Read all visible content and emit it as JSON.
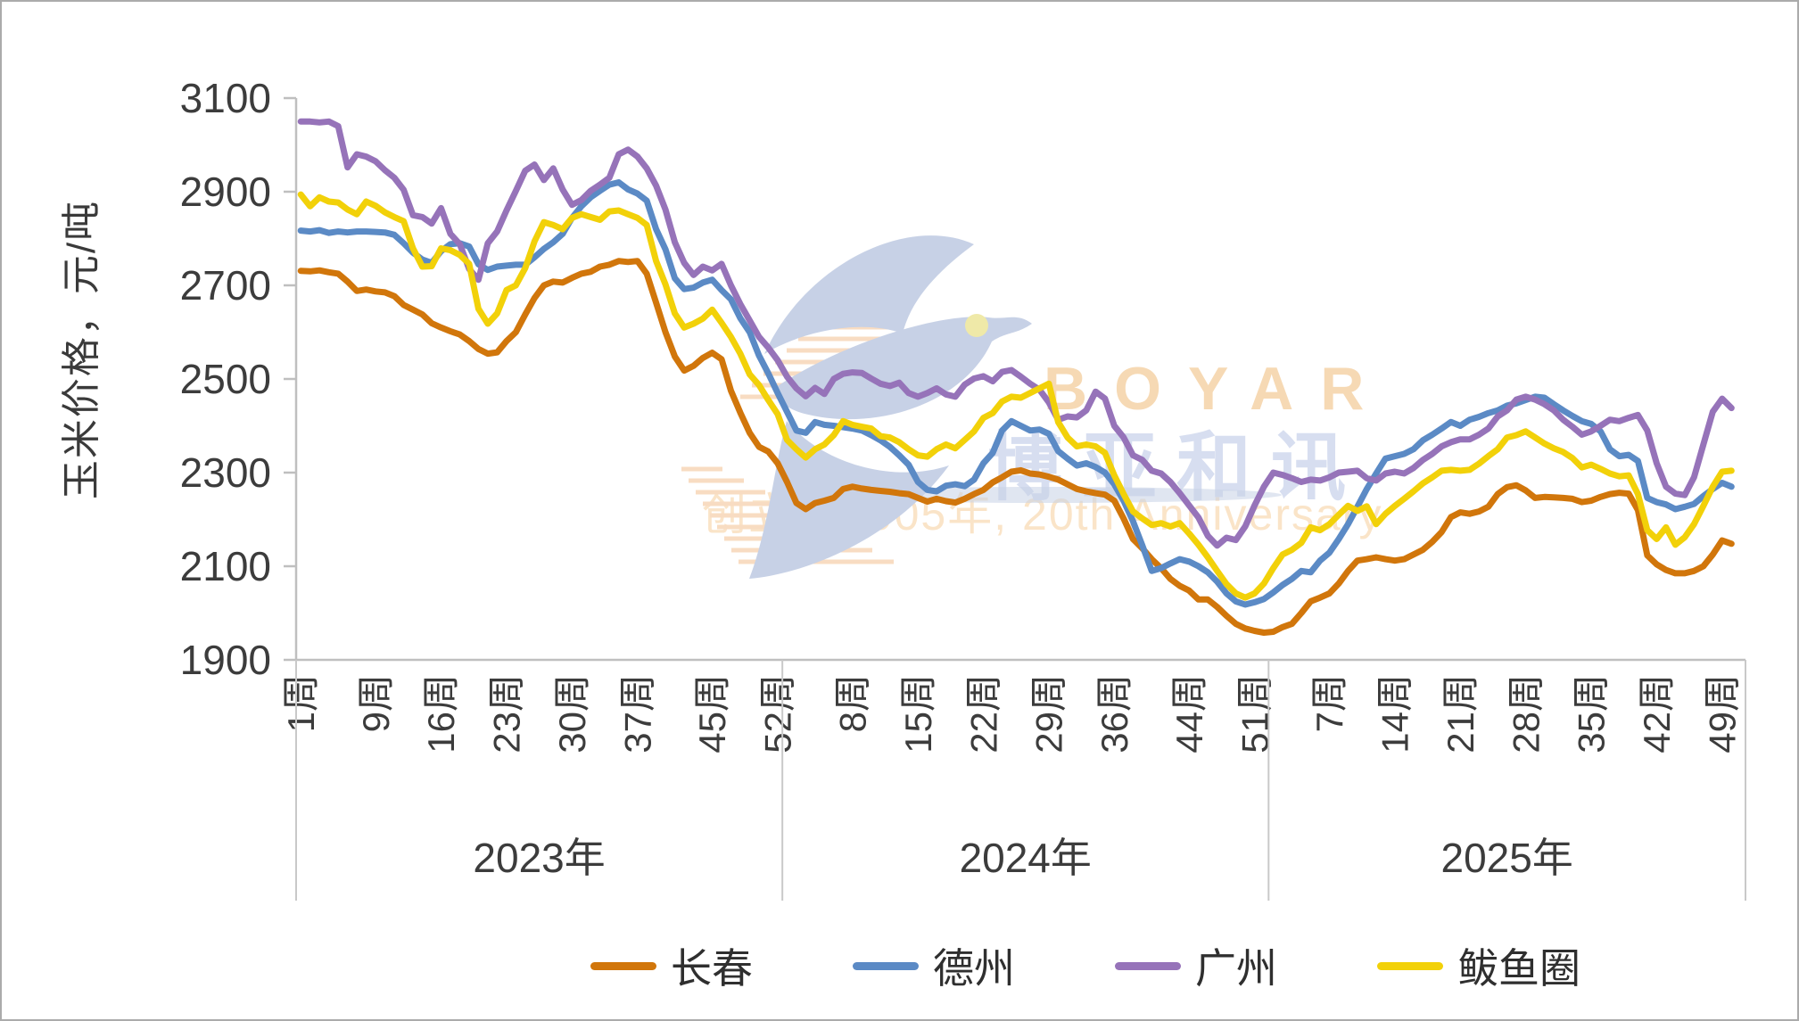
{
  "watermark": {
    "brand": "BOYAR",
    "brand_cn": "博亚和讯",
    "slogan": "创立于2005年, 20th Anniversary",
    "brand_color": "#f6d9b4",
    "brand_cn_color": "#d7def0",
    "slogan_color": "#fae4c8",
    "bird_color": "#c7d1e6",
    "stripe_color": "#f8dcc2"
  },
  "axis_colors": {
    "line": "#bfbfbf",
    "separator": "#c9c9c9",
    "text": "#3c3c3c"
  },
  "chart_data": {
    "type": "line",
    "title": "",
    "ylabel": "玉米价格，元/吨",
    "ylim": [
      1900,
      3100
    ],
    "y_ticks": [
      1900,
      2100,
      2300,
      2500,
      2700,
      2900,
      3100
    ],
    "x_tick_suffix": "周",
    "grid": "off",
    "legend_position": "bottom",
    "years": [
      {
        "label": "2023年",
        "year": 2023,
        "slots": 52,
        "tick_weeks": [
          1,
          9,
          16,
          23,
          30,
          37,
          45,
          52
        ]
      },
      {
        "label": "2024年",
        "year": 2024,
        "slots": 52,
        "tick_weeks": [
          8,
          15,
          22,
          29,
          36,
          44,
          51
        ]
      },
      {
        "label": "2025年",
        "year": 2025,
        "slots": 51,
        "tick_weeks": [
          7,
          14,
          21,
          28,
          35,
          42,
          49
        ]
      }
    ],
    "series": [
      {
        "name": "长春",
        "color": "#d1760b",
        "values_2023": [
          2731,
          2730,
          2732,
          2728,
          2725,
          2708,
          2688,
          2691,
          2687,
          2685,
          2677,
          2658,
          2648,
          2638,
          2619,
          2610,
          2602,
          2595,
          2581,
          2564,
          2554,
          2557,
          2581,
          2600,
          2638,
          2673,
          2700,
          2708,
          2706,
          2716,
          2725,
          2729,
          2740,
          2744,
          2752,
          2750,
          2752,
          2725,
          2663,
          2600,
          2548,
          2518,
          2528,
          2545,
          2556,
          2542,
          2475,
          2428,
          2385,
          2355,
          2345,
          2320
        ],
        "values_2024": [
          2280,
          2235,
          2222,
          2235,
          2240,
          2246,
          2265,
          2270,
          2266,
          2263,
          2261,
          2259,
          2256,
          2254,
          2246,
          2238,
          2244,
          2239,
          2236,
          2244,
          2254,
          2263,
          2279,
          2290,
          2302,
          2305,
          2298,
          2296,
          2291,
          2285,
          2275,
          2265,
          2260,
          2256,
          2253,
          2240,
          2202,
          2158,
          2138,
          2115,
          2096,
          2073,
          2058,
          2048,
          2029,
          2029,
          2013,
          1994,
          1977,
          1967,
          1962,
          1958
        ],
        "values_2025": [
          1960,
          1970,
          1977,
          2000,
          2025,
          2033,
          2042,
          2063,
          2090,
          2112,
          2115,
          2119,
          2115,
          2112,
          2115,
          2125,
          2135,
          2152,
          2173,
          2205,
          2215,
          2212,
          2217,
          2227,
          2254,
          2269,
          2273,
          2262,
          2246,
          2248,
          2247,
          2246,
          2244,
          2237,
          2240,
          2248,
          2254,
          2257,
          2255,
          2220,
          2123,
          2104,
          2092,
          2085,
          2085,
          2090,
          2100,
          2125,
          2155,
          2148
        ]
      },
      {
        "name": "德州",
        "color": "#5b8ac5",
        "values_2023": [
          2817,
          2815,
          2818,
          2812,
          2815,
          2813,
          2815,
          2815,
          2814,
          2813,
          2808,
          2790,
          2770,
          2755,
          2748,
          2773,
          2788,
          2790,
          2783,
          2745,
          2733,
          2740,
          2742,
          2744,
          2744,
          2760,
          2778,
          2792,
          2810,
          2844,
          2869,
          2888,
          2902,
          2915,
          2920,
          2905,
          2896,
          2881,
          2820,
          2777,
          2715,
          2692,
          2695,
          2706,
          2712,
          2690,
          2670,
          2630,
          2600,
          2550,
          2512,
          2470
        ],
        "values_2024": [
          2430,
          2390,
          2385,
          2408,
          2402,
          2400,
          2397,
          2394,
          2390,
          2380,
          2369,
          2355,
          2337,
          2317,
          2280,
          2263,
          2260,
          2272,
          2275,
          2271,
          2285,
          2320,
          2342,
          2390,
          2410,
          2400,
          2390,
          2392,
          2383,
          2346,
          2330,
          2315,
          2320,
          2312,
          2300,
          2275,
          2240,
          2196,
          2144,
          2090,
          2096,
          2106,
          2115,
          2110,
          2100,
          2087,
          2067,
          2042,
          2025,
          2018,
          2023,
          2030
        ],
        "values_2025": [
          2044,
          2060,
          2073,
          2090,
          2087,
          2112,
          2129,
          2158,
          2190,
          2227,
          2265,
          2298,
          2330,
          2335,
          2340,
          2350,
          2369,
          2381,
          2394,
          2408,
          2400,
          2413,
          2419,
          2427,
          2433,
          2443,
          2448,
          2455,
          2462,
          2460,
          2446,
          2433,
          2421,
          2410,
          2404,
          2388,
          2350,
          2335,
          2338,
          2325,
          2246,
          2237,
          2232,
          2222,
          2227,
          2233,
          2250,
          2265,
          2278,
          2270
        ]
      },
      {
        "name": "广州",
        "color": "#9673b9",
        "values_2023": [
          3050,
          3050,
          3048,
          3050,
          3040,
          2952,
          2980,
          2975,
          2965,
          2946,
          2930,
          2904,
          2850,
          2846,
          2832,
          2865,
          2810,
          2788,
          2735,
          2712,
          2790,
          2815,
          2860,
          2902,
          2945,
          2958,
          2925,
          2950,
          2905,
          2872,
          2882,
          2902,
          2915,
          2930,
          2980,
          2990,
          2975,
          2950,
          2913,
          2862,
          2792,
          2748,
          2722,
          2740,
          2732,
          2746,
          2700,
          2660,
          2625,
          2590,
          2567,
          2540
        ],
        "values_2024": [
          2505,
          2480,
          2463,
          2481,
          2468,
          2500,
          2511,
          2514,
          2513,
          2501,
          2490,
          2485,
          2492,
          2470,
          2462,
          2470,
          2480,
          2467,
          2462,
          2488,
          2501,
          2506,
          2495,
          2515,
          2519,
          2505,
          2490,
          2477,
          2450,
          2413,
          2420,
          2418,
          2433,
          2473,
          2458,
          2400,
          2375,
          2337,
          2327,
          2304,
          2298,
          2280,
          2256,
          2230,
          2204,
          2165,
          2144,
          2161,
          2156,
          2185,
          2230,
          2270
        ],
        "values_2025": [
          2300,
          2295,
          2288,
          2280,
          2285,
          2283,
          2290,
          2300,
          2302,
          2304,
          2288,
          2283,
          2298,
          2302,
          2298,
          2310,
          2327,
          2340,
          2356,
          2365,
          2371,
          2371,
          2381,
          2394,
          2420,
          2433,
          2456,
          2462,
          2456,
          2446,
          2433,
          2413,
          2398,
          2381,
          2388,
          2400,
          2413,
          2410,
          2417,
          2423,
          2390,
          2320,
          2270,
          2255,
          2252,
          2290,
          2360,
          2430,
          2458,
          2438
        ]
      },
      {
        "name": "鲅鱼圈",
        "color": "#f2d109",
        "values_2023": [
          2894,
          2869,
          2888,
          2879,
          2877,
          2862,
          2852,
          2879,
          2870,
          2856,
          2846,
          2837,
          2779,
          2740,
          2741,
          2779,
          2775,
          2765,
          2746,
          2650,
          2618,
          2640,
          2690,
          2700,
          2737,
          2794,
          2835,
          2829,
          2820,
          2844,
          2852,
          2846,
          2840,
          2858,
          2860,
          2852,
          2844,
          2829,
          2752,
          2702,
          2640,
          2610,
          2618,
          2629,
          2648,
          2620,
          2590,
          2554,
          2510,
          2487,
          2455,
          2425
        ],
        "values_2024": [
          2370,
          2350,
          2332,
          2350,
          2360,
          2380,
          2410,
          2402,
          2398,
          2394,
          2378,
          2375,
          2365,
          2350,
          2337,
          2334,
          2350,
          2360,
          2352,
          2370,
          2388,
          2417,
          2427,
          2452,
          2462,
          2460,
          2470,
          2480,
          2490,
          2408,
          2375,
          2356,
          2360,
          2356,
          2342,
          2294,
          2254,
          2217,
          2202,
          2188,
          2192,
          2185,
          2192,
          2170,
          2146,
          2119,
          2090,
          2062,
          2042,
          2033,
          2042,
          2063
        ],
        "values_2025": [
          2096,
          2125,
          2135,
          2150,
          2183,
          2177,
          2190,
          2210,
          2229,
          2218,
          2228,
          2190,
          2212,
          2229,
          2244,
          2260,
          2277,
          2290,
          2304,
          2306,
          2304,
          2306,
          2319,
          2335,
          2350,
          2375,
          2380,
          2388,
          2375,
          2362,
          2352,
          2344,
          2331,
          2311,
          2317,
          2308,
          2298,
          2292,
          2294,
          2254,
          2177,
          2158,
          2183,
          2146,
          2162,
          2190,
          2229,
          2270,
          2302,
          2304
        ]
      }
    ]
  }
}
